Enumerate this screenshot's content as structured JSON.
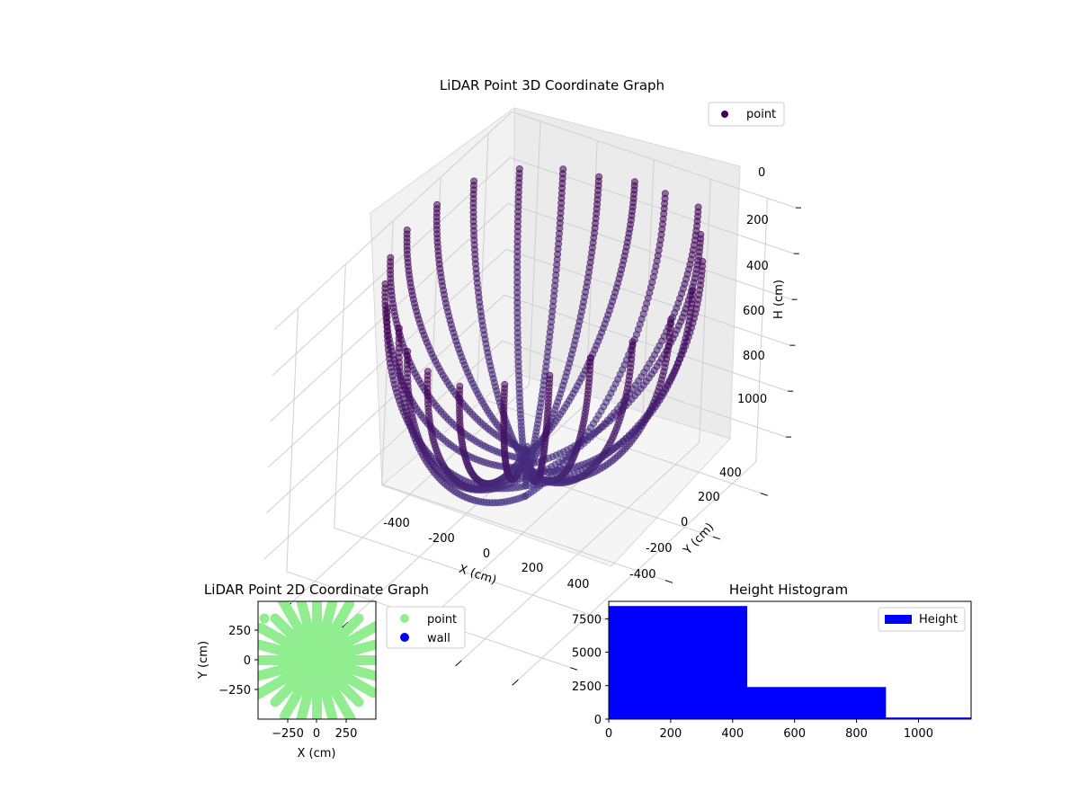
{
  "chart_data": [
    {
      "type": "scatter3d",
      "title": "LiDAR Point 3D Coordinate Graph",
      "xlabel": "X (cm)",
      "ylabel": "Y (cm)",
      "zlabel": "H (cm)",
      "xlim": [
        -500,
        500
      ],
      "ylim": [
        -500,
        500
      ],
      "zlim": [
        0,
        1150
      ],
      "z_inverted": true,
      "x_ticks": [
        "-400",
        "-200",
        "0",
        "200",
        "400"
      ],
      "y_ticks": [
        "-400",
        "-200",
        "0",
        "200",
        "400"
      ],
      "z_ticks": [
        "0",
        "200",
        "400",
        "600",
        "800",
        "1000"
      ],
      "legend": {
        "position": "top-right",
        "entries": [
          {
            "label": "point",
            "color": "#440154"
          }
        ]
      },
      "colormap": "viridis",
      "series": [
        {
          "name": "point",
          "description_free": true,
          "arcs": [
            {
              "angle_deg": 0,
              "radius": 480,
              "depth": 1000
            },
            {
              "angle_deg": 15,
              "radius": 470,
              "depth": 980
            },
            {
              "angle_deg": 30,
              "radius": 460,
              "depth": 1050
            },
            {
              "angle_deg": 45,
              "radius": 450,
              "depth": 950
            },
            {
              "angle_deg": 60,
              "radius": 470,
              "depth": 1020
            },
            {
              "angle_deg": 75,
              "radius": 430,
              "depth": 1100
            },
            {
              "angle_deg": 90,
              "radius": 420,
              "depth": 900
            },
            {
              "angle_deg": 105,
              "radius": 410,
              "depth": 980
            },
            {
              "angle_deg": 120,
              "radius": 440,
              "depth": 1030
            },
            {
              "angle_deg": 135,
              "radius": 470,
              "depth": 1000
            },
            {
              "angle_deg": 150,
              "radius": 480,
              "depth": 950
            },
            {
              "angle_deg": 165,
              "radius": 460,
              "depth": 900
            },
            {
              "angle_deg": 180,
              "radius": 450,
              "depth": 880
            },
            {
              "angle_deg": 195,
              "radius": 430,
              "depth": 920
            },
            {
              "angle_deg": 210,
              "radius": 410,
              "depth": 960
            },
            {
              "angle_deg": 225,
              "radius": 400,
              "depth": 1050
            },
            {
              "angle_deg": 240,
              "radius": 390,
              "depth": 1100
            },
            {
              "angle_deg": 255,
              "radius": 420,
              "depth": 1000
            },
            {
              "angle_deg": 270,
              "radius": 450,
              "depth": 950
            },
            {
              "angle_deg": 285,
              "radius": 480,
              "depth": 880
            },
            {
              "angle_deg": 300,
              "radius": 470,
              "depth": 860
            },
            {
              "angle_deg": 315,
              "radius": 460,
              "depth": 900
            },
            {
              "angle_deg": 330,
              "radius": 440,
              "depth": 940
            },
            {
              "angle_deg": 345,
              "radius": 460,
              "depth": 980
            }
          ]
        }
      ]
    },
    {
      "type": "scatter",
      "title": "LiDAR Point 2D Coordinate Graph",
      "xlabel": "X (cm)",
      "ylabel": "Y (cm)",
      "xlim": [
        -490,
        490
      ],
      "ylim": [
        -490,
        490
      ],
      "x_ticks": [
        "−250",
        "0",
        "250"
      ],
      "y_ticks": [
        "250",
        "0",
        "−250"
      ],
      "legend": {
        "position": "outside-right",
        "entries": [
          {
            "label": "point",
            "color": "#90ee90"
          },
          {
            "label": "wall",
            "color": "#0000ff"
          }
        ]
      },
      "series": [
        {
          "name": "point",
          "color": "#90ee90",
          "rays_deg": [
            0,
            15,
            30,
            45,
            60,
            75,
            90,
            105,
            120,
            135,
            150,
            165,
            180,
            195,
            210,
            225,
            240,
            255,
            270,
            285,
            300,
            315,
            330,
            345
          ]
        },
        {
          "name": "wall",
          "color": "#0000ff",
          "values": []
        }
      ]
    },
    {
      "type": "bar",
      "title": "Height Histogram",
      "xlabel": "",
      "ylabel": "",
      "xlim": [
        0,
        1170
      ],
      "ylim": [
        0,
        8800
      ],
      "x_ticks": [
        "0",
        "200",
        "400",
        "600",
        "800",
        "1000"
      ],
      "y_ticks": [
        "0",
        "2500",
        "5000",
        "7500"
      ],
      "legend": {
        "position": "top-right",
        "entries": [
          {
            "label": "Height",
            "color": "#0000ff"
          }
        ]
      },
      "bins": [
        {
          "start": 0,
          "end": 447,
          "count": 8450
        },
        {
          "start": 447,
          "end": 895,
          "count": 2400
        },
        {
          "start": 895,
          "end": 1170,
          "count": 120
        }
      ],
      "color": "#0000ff"
    }
  ]
}
